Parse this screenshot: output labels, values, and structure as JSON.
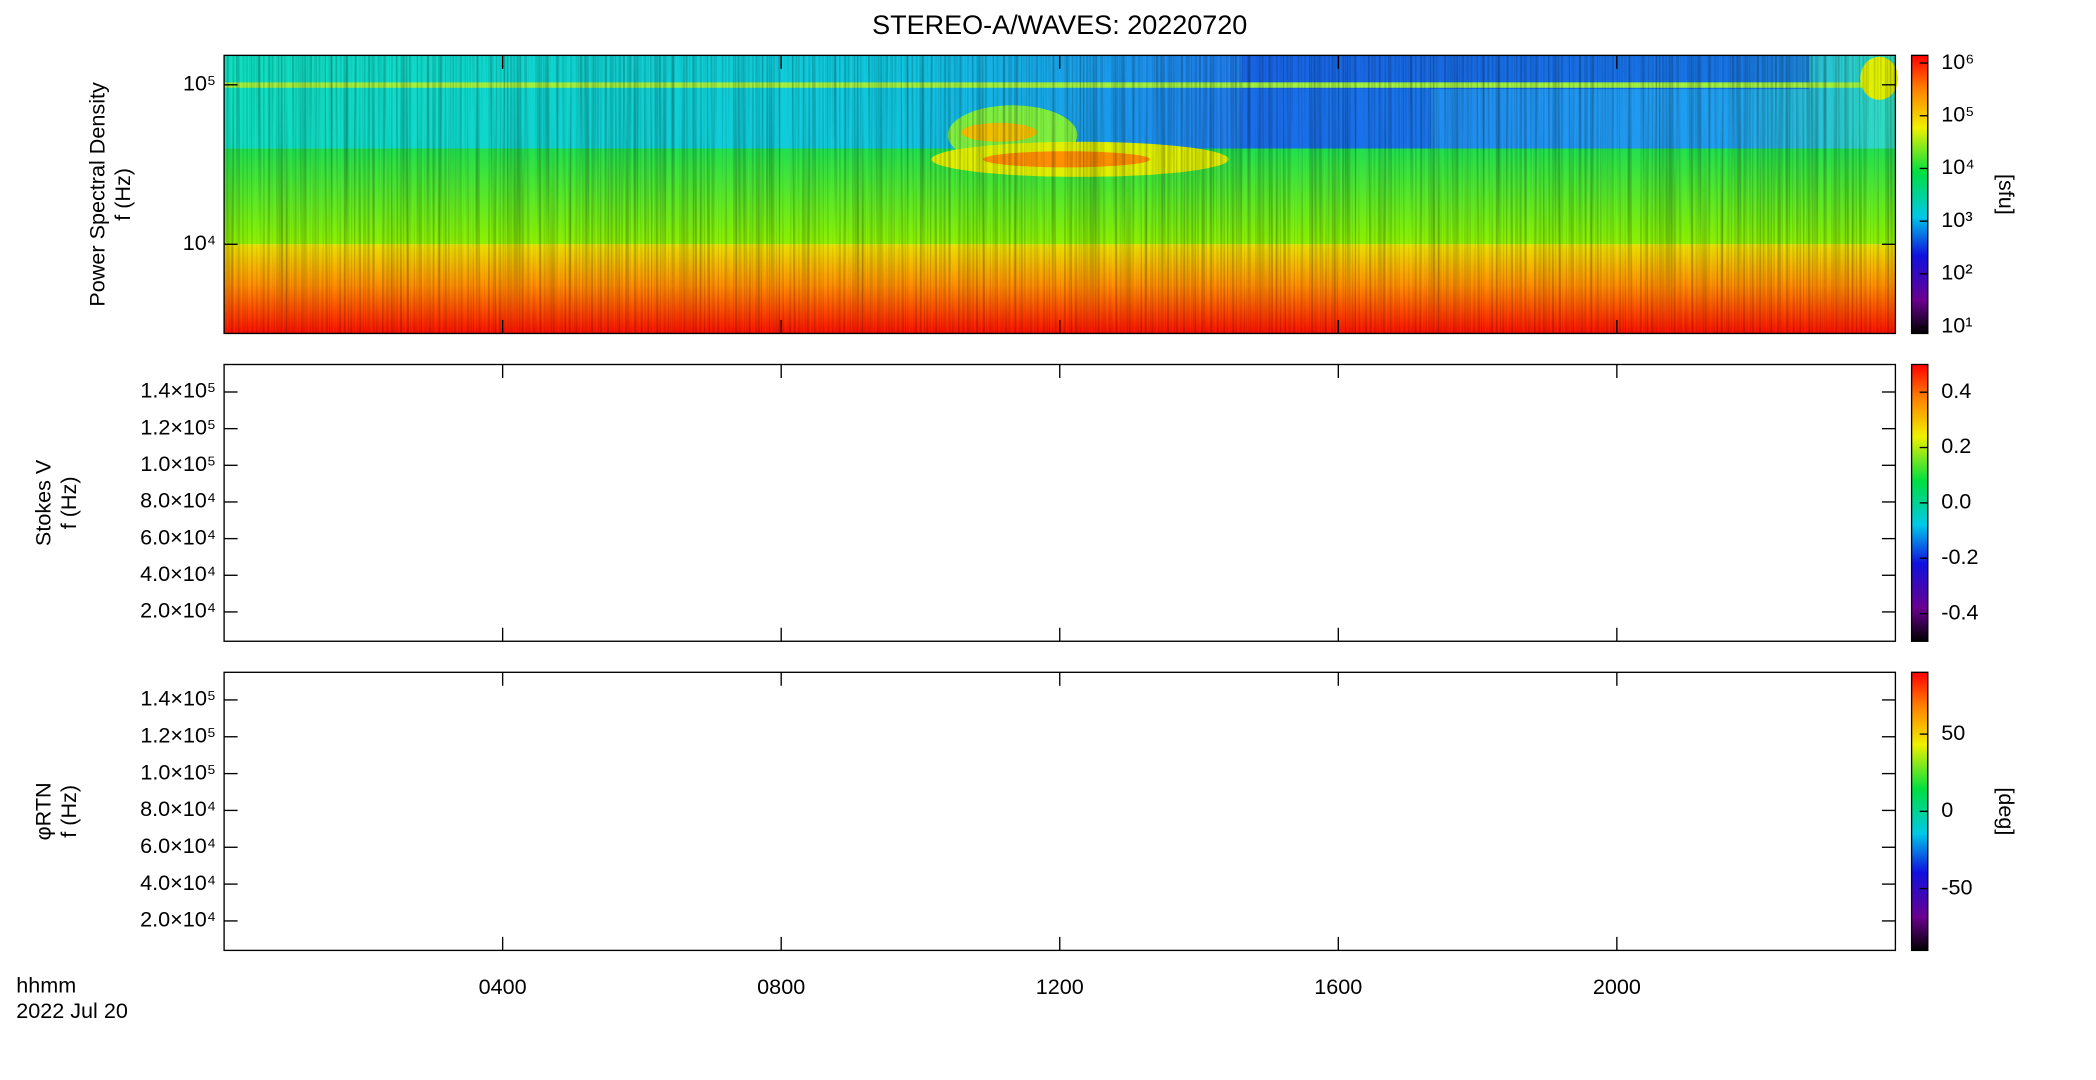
{
  "chart_data": [
    {
      "type": "spectrogram",
      "title": "STEREO-A/WAVES: 20220720",
      "ylabel": [
        "Power Spectral Density",
        "f (Hz)"
      ],
      "log_y": true,
      "xlim": [
        0,
        24
      ],
      "ylim": [
        2760,
        153000
      ],
      "yticks": [
        {
          "value": 10000,
          "label": "10⁴"
        },
        {
          "value": 100000,
          "label": "10⁵"
        }
      ],
      "colorbar": {
        "label": "[sfu]",
        "log": true,
        "lim": [
          7.4,
          1400000
        ],
        "ticks": [
          {
            "value": 10,
            "label": "10¹"
          },
          {
            "value": 100,
            "label": "10²"
          },
          {
            "value": 1000,
            "label": "10³"
          },
          {
            "value": 10000,
            "label": "10⁴"
          },
          {
            "value": 100000,
            "label": "10⁵"
          },
          {
            "value": 1000000,
            "label": "10⁶"
          }
        ]
      }
    },
    {
      "type": "spectrogram",
      "ylabel": [
        "Stokes V",
        "f (Hz)"
      ],
      "log_y": false,
      "xlim": [
        0,
        24
      ],
      "ylim": [
        4000,
        155000
      ],
      "yticks": [
        {
          "value": 20000,
          "label": "2.0×10⁴"
        },
        {
          "value": 40000,
          "label": "4.0×10⁴"
        },
        {
          "value": 60000,
          "label": "6.0×10⁴"
        },
        {
          "value": 80000,
          "label": "8.0×10⁴"
        },
        {
          "value": 100000,
          "label": "1.0×10⁵"
        },
        {
          "value": 120000,
          "label": "1.2×10⁵"
        },
        {
          "value": 140000,
          "label": "1.4×10⁵"
        }
      ],
      "colorbar": {
        "log": false,
        "lim": [
          -0.5,
          0.5
        ],
        "ticks": [
          -0.4,
          -0.2,
          {
            "value": 0,
            "label": "0.0"
          },
          0.2,
          0.4
        ]
      }
    },
    {
      "type": "spectrogram",
      "ylabel": [
        "φRTN",
        "f (Hz)"
      ],
      "log_y": false,
      "xlim": [
        0,
        24
      ],
      "ylim": [
        4000,
        155000
      ],
      "yticks": [
        {
          "value": 20000,
          "label": "2.0×10⁴"
        },
        {
          "value": 40000,
          "label": "4.0×10⁴"
        },
        {
          "value": 60000,
          "label": "6.0×10⁴"
        },
        {
          "value": 80000,
          "label": "8.0×10⁴"
        },
        {
          "value": 100000,
          "label": "1.0×10⁵"
        },
        {
          "value": 120000,
          "label": "1.2×10⁵"
        },
        {
          "value": 140000,
          "label": "1.4×10⁵"
        }
      ],
      "colorbar": {
        "label": "[deg]",
        "log": false,
        "lim": [
          -90,
          90
        ],
        "ticks": [
          -50,
          0,
          50
        ]
      },
      "xlabel": "hhmm",
      "date": "2022 Jul 20",
      "xticks": [
        {
          "value": 4,
          "label": "0400"
        },
        {
          "value": 8,
          "label": "0800"
        },
        {
          "value": 12,
          "label": "1200"
        },
        {
          "value": 16,
          "label": "1600"
        },
        {
          "value": 20,
          "label": "2000"
        }
      ]
    }
  ]
}
